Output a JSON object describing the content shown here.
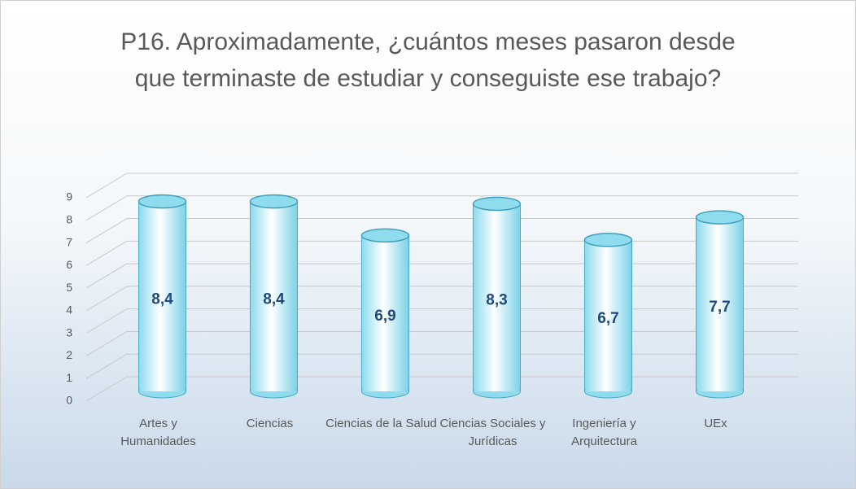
{
  "chart_data": {
    "type": "bar",
    "title": "P16. Aproximadamente, ¿cuántos meses pasaron desde que terminaste de estudiar y conseguiste ese trabajo?",
    "categories": [
      "Artes y Humanidades",
      "Ciencias",
      "Ciencias de la Salud",
      "Ciencias Sociales y Jurídicas",
      "Ingeniería y Arquitectura",
      "UEx"
    ],
    "values": [
      8.4,
      8.4,
      6.9,
      8.3,
      6.7,
      7.7
    ],
    "value_labels": [
      "8,4",
      "8,4",
      "6,9",
      "8,3",
      "6,7",
      "7,7"
    ],
    "color": "#8fdcee",
    "ylim": [
      0,
      9
    ],
    "yticks": [
      0,
      1,
      2,
      3,
      4,
      5,
      6,
      7,
      8,
      9
    ],
    "grid": true
  }
}
